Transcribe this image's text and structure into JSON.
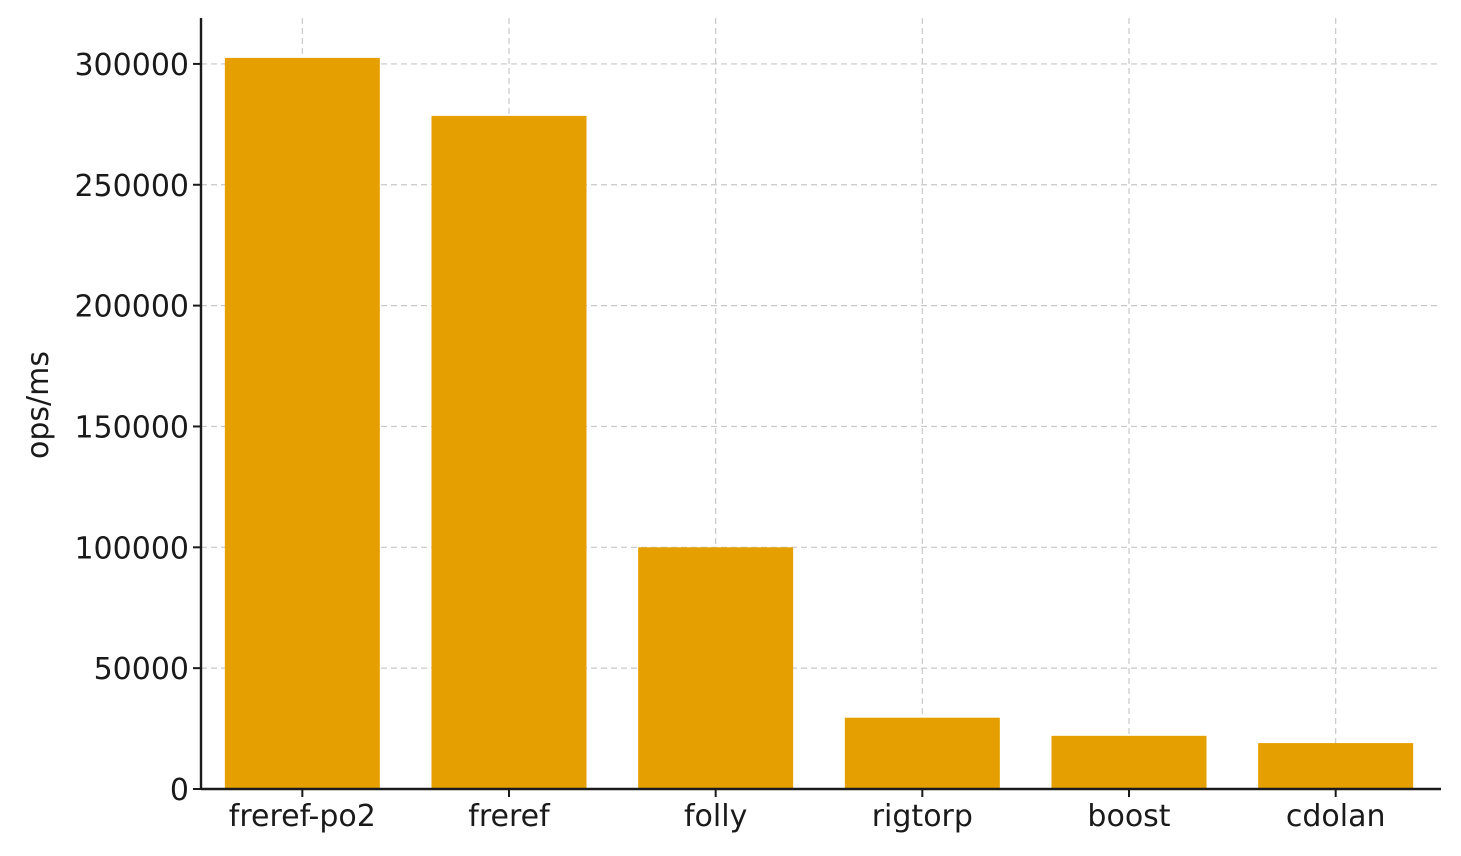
{
  "chart_data": {
    "type": "bar",
    "title": "",
    "xlabel": "",
    "ylabel": "ops/ms",
    "categories": [
      "freref-po2",
      "freref",
      "folly",
      "rigtorp",
      "boost",
      "cdolan"
    ],
    "values": [
      302500,
      278500,
      100000,
      29500,
      22000,
      19000
    ],
    "ylim": [
      0,
      319000
    ],
    "yticks": [
      0,
      50000,
      100000,
      150000,
      200000,
      250000,
      300000
    ],
    "grid": true,
    "legend": "none",
    "bar_color": "#E69F00"
  }
}
